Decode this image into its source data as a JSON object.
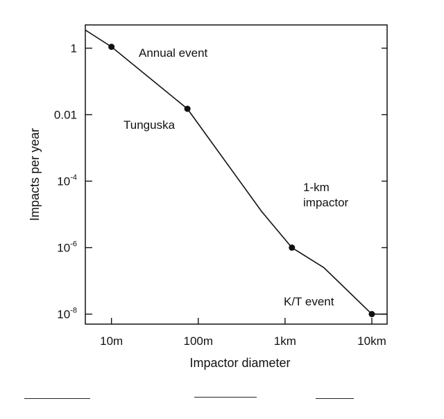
{
  "chart_data": {
    "type": "line",
    "title": "",
    "xlabel": "Impactor diameter",
    "ylabel": "Impacts per year",
    "x_scale": "log",
    "y_scale": "log",
    "xlim": [
      5,
      15000
    ],
    "ylim": [
      5e-09,
      5
    ],
    "grid": false,
    "x_ticks": [
      {
        "value": 10,
        "label": "10m"
      },
      {
        "value": 100,
        "label": "100m"
      },
      {
        "value": 1000,
        "label": "1km"
      },
      {
        "value": 10000,
        "label": "10km"
      }
    ],
    "y_ticks": [
      {
        "value": 1,
        "label": "1",
        "exp": ""
      },
      {
        "value": 0.01,
        "label": "0.01",
        "exp": ""
      },
      {
        "value": 0.0001,
        "label": "10",
        "exp": "-4"
      },
      {
        "value": 1e-06,
        "label": "10",
        "exp": "-6"
      },
      {
        "value": 1e-08,
        "label": "10",
        "exp": "-8"
      }
    ],
    "series": [
      {
        "x": [
          5,
          10,
          75,
          540,
          1200,
          2800,
          10000,
          15000
        ],
        "y": [
          3.5,
          1.1,
          0.015,
          1.2e-05,
          1e-06,
          2.5e-07,
          1e-08,
          1e-08
        ]
      }
    ],
    "markers": [
      {
        "x": 10,
        "y": 1.1
      },
      {
        "x": 75,
        "y": 0.015
      },
      {
        "x": 1200,
        "y": 1e-06
      },
      {
        "x": 10000,
        "y": 1e-08
      }
    ],
    "annotations": [
      {
        "lines": [
          "Annual event"
        ]
      },
      {
        "lines": [
          "Tunguska"
        ]
      },
      {
        "lines": [
          "1-km",
          "impactor"
        ]
      },
      {
        "lines": [
          "K/T event"
        ]
      }
    ]
  }
}
